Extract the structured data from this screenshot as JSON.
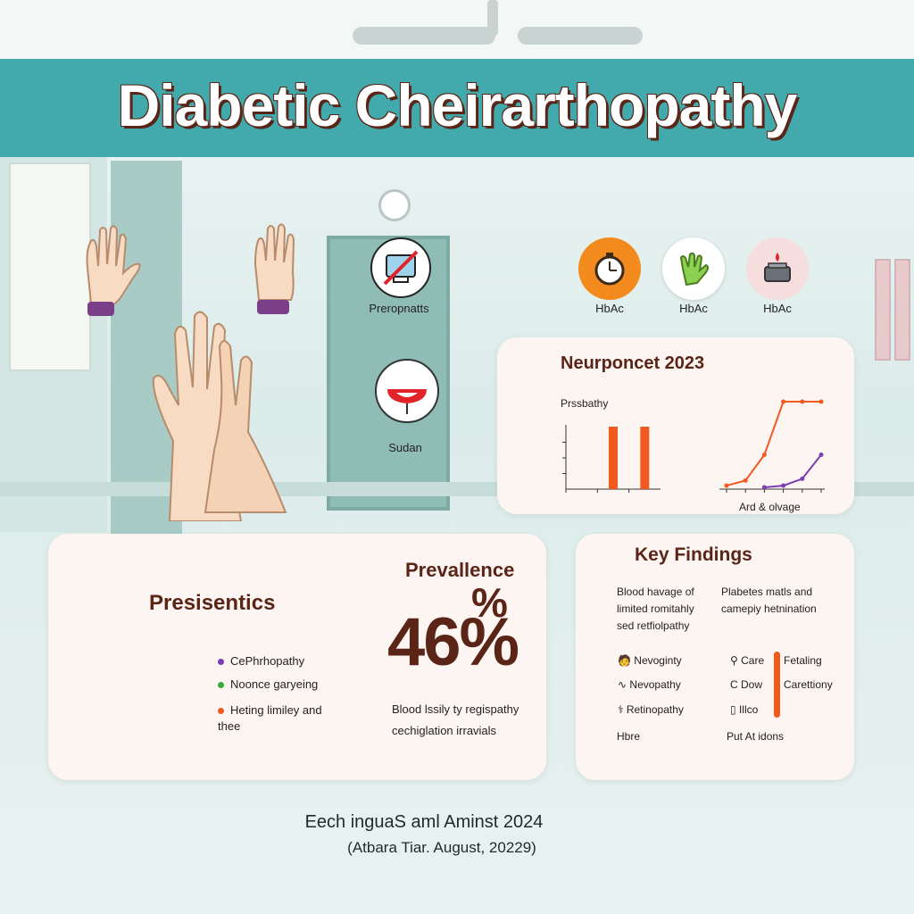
{
  "title": "Diabetic Cheirarthopathy",
  "icons": [
    {
      "label": "Preropnatts",
      "icon": "device-crossed-icon",
      "bg": "#ffffff"
    },
    {
      "label": "HbAc",
      "icon": "stopwatch-icon",
      "bg": "#f28a1e"
    },
    {
      "label": "HbAc",
      "icon": "glove-icon",
      "bg": "#ffffff"
    },
    {
      "label": "HbAc",
      "icon": "scale-icon",
      "bg": "#f7dede"
    },
    {
      "label": "Sudan",
      "icon": "red-bulb-icon",
      "bg": "#ffffff"
    }
  ],
  "chart_card": {
    "title": "Neurponcet 2023",
    "left_label": "Prssbathy",
    "right_label": "Ard & olvage"
  },
  "chart_data": [
    {
      "type": "bar",
      "title": "",
      "xlabel": "",
      "ylabel": "",
      "categories": [
        "",
        "",
        ""
      ],
      "values": [
        0,
        1,
        1
      ],
      "ylim": [
        0,
        1
      ],
      "bar_color": "#f05a1e"
    },
    {
      "type": "line",
      "title": "",
      "xlabel": "Ard & olvage",
      "ylabel": "",
      "x": [
        1,
        2,
        3,
        4,
        5,
        6
      ],
      "series": [
        {
          "values": [
            0.02,
            0.08,
            0.38,
            1.0,
            1.0,
            1.0
          ],
          "color": "#f05a1e"
        },
        {
          "values": [
            null,
            null,
            0.0,
            0.02,
            0.1,
            0.38
          ],
          "color": "#7b3fb0"
        }
      ],
      "ylim": [
        0,
        1
      ]
    }
  ],
  "presentation_card": {
    "title": "Presisentics",
    "bullets": [
      {
        "text": "CePhrhopathy",
        "color": "#7b3fb0"
      },
      {
        "text": "Noonce garyeing",
        "color": "#3aa83a"
      },
      {
        "text": "Heting limiley and thee",
        "color": "#f05a1e"
      }
    ],
    "prevalence_label": "Prevallence",
    "percent_sign": "%",
    "big_value": "46%",
    "note_line1": "Blood lssily ty regispathy",
    "note_line2": "cechiglation irravials"
  },
  "findings_card": {
    "title": "Key Findings",
    "col1": [
      "Blood havage of",
      "limited romitahly",
      "sed retfiolpathy"
    ],
    "col2": [
      "Plabetes matls and",
      "camepiy hetnination"
    ],
    "items_left": [
      {
        "icon": "doctor-icon",
        "text": "Nevoginty"
      },
      {
        "icon": "nerve-icon",
        "text": "Nevopathy"
      },
      {
        "icon": "stethoscope-icon",
        "text": "Retinopathy"
      }
    ],
    "items_mid": [
      {
        "icon": "magnifier-icon",
        "text": "Care"
      },
      {
        "icon": "c-letter-icon",
        "text": "Dow"
      },
      {
        "icon": "vial-icon",
        "text": "Illco"
      }
    ],
    "items_right": [
      "Fetaling",
      "Carettiony"
    ],
    "footer_left": "Hbre",
    "footer_right": "Put At idons",
    "accent_bar_color": "#f05a1e"
  },
  "footer": {
    "line1": "Eech inguaS aml Aminst 2024",
    "line2": "(Atbara Tiar. August, 20229)"
  }
}
